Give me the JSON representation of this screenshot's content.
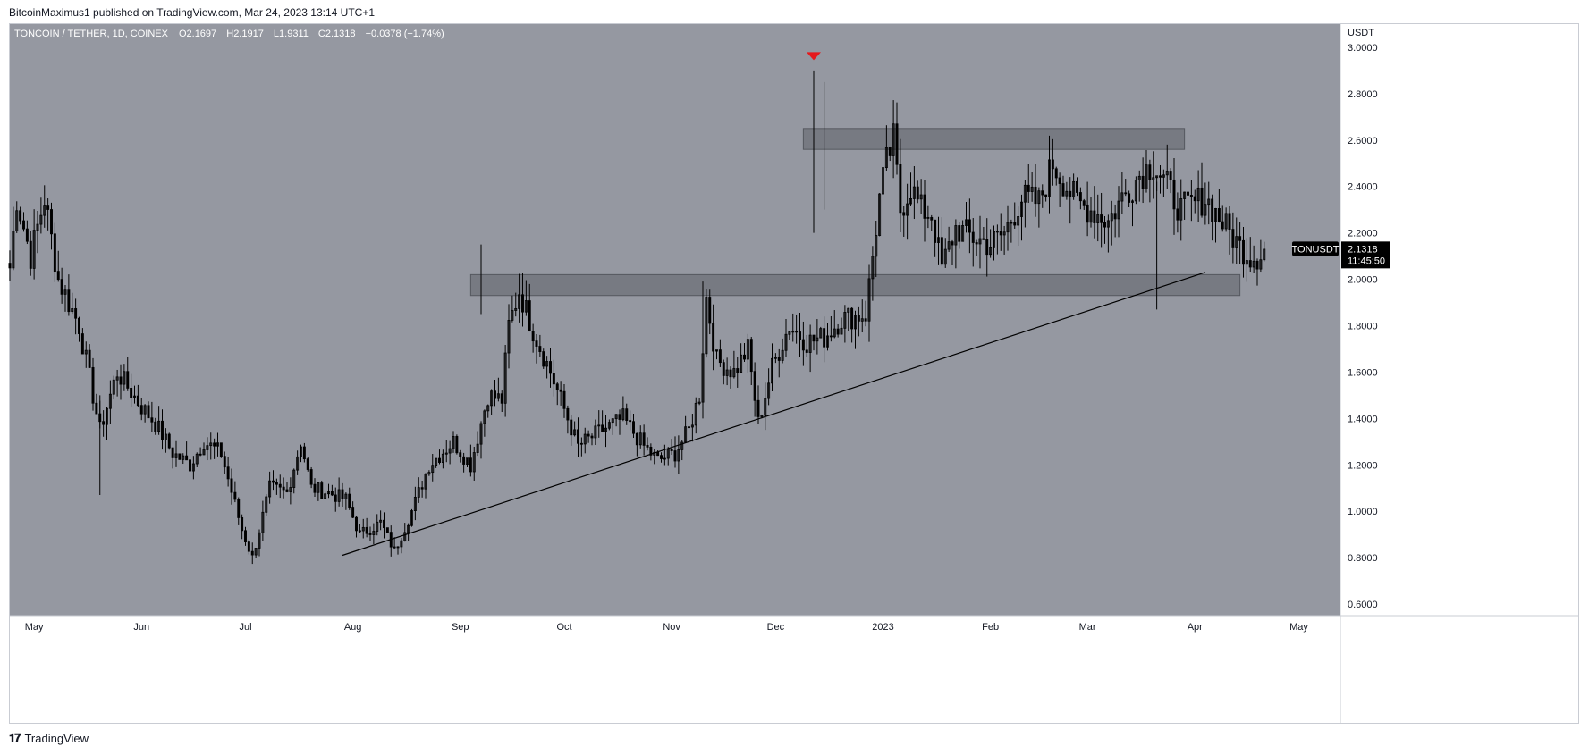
{
  "attribution": "BitcoinMaximus1 published on TradingView.com, Mar 24, 2023 13:14 UTC+1",
  "footer_brand": "TradingView",
  "footer_logo_icon": "tradingview-logo-icon",
  "colors": {
    "plot_bg": "#9598a1",
    "axis_bg": "#ffffff",
    "candle": "#000000",
    "zone": "#5f626a",
    "trendline": "#000000",
    "marker": "#e5191c",
    "price_label_bg": "#000000",
    "price_label_text": "#ffffff"
  },
  "chart_data": {
    "type": "candlestick",
    "symbol_header": {
      "symbol": "TONCOIN / TETHER, 1D, COINEX",
      "open_label": "O",
      "open": "2.1697",
      "high_label": "H",
      "high": "2.1917",
      "low_label": "L",
      "low": "1.9311",
      "close_label": "C",
      "close": "2.1318",
      "change": "−0.0378 (−1.74%)"
    },
    "currency_label": "USDT",
    "ylim": [
      0.55,
      3.1
    ],
    "y_ticks": [
      "3.0000",
      "2.8000",
      "2.6000",
      "2.4000",
      "2.2000",
      "2.0000",
      "1.8000",
      "1.6000",
      "1.4000",
      "1.2000",
      "1.0000",
      "0.8000",
      "0.6000"
    ],
    "x_ticks": [
      "May",
      "Jun",
      "Jul",
      "Aug",
      "Sep",
      "Oct",
      "Nov",
      "Dec",
      "2023",
      "Feb",
      "Mar",
      "Apr",
      "May"
    ],
    "x_tick_dates": [
      "2022-05-01",
      "2022-06-01",
      "2022-07-01",
      "2022-08-01",
      "2022-09-01",
      "2022-10-01",
      "2022-11-01",
      "2022-12-01",
      "2023-01-01",
      "2023-02-01",
      "2023-03-01",
      "2023-04-01",
      "2023-05-01"
    ],
    "xlim": [
      "2022-04-24",
      "2023-05-13"
    ],
    "last_price": {
      "symbol": "TONUSDT",
      "price": "2.1318",
      "countdown": "11:45:50",
      "value": 2.1318
    },
    "horizontal_zones": [
      {
        "name": "resistance",
        "start": "2022-12-09",
        "end": "2023-03-29",
        "low": 2.56,
        "high": 2.65
      },
      {
        "name": "support",
        "start": "2022-09-04",
        "end": "2023-04-14",
        "low": 1.93,
        "high": 2.02
      }
    ],
    "trendline": {
      "start": {
        "date": "2022-07-29",
        "value": 0.81
      },
      "end": {
        "date": "2023-04-04",
        "value": 2.03
      }
    },
    "marker": {
      "type": "down-triangle",
      "date": "2022-12-12",
      "value": 2.96
    },
    "anchors": [
      [
        "2022-04-24",
        2.05
      ],
      [
        "2022-04-26",
        2.35
      ],
      [
        "2022-04-30",
        2.1
      ],
      [
        "2022-05-04",
        2.35
      ],
      [
        "2022-05-08",
        2.0
      ],
      [
        "2022-05-14",
        1.8
      ],
      [
        "2022-05-20",
        1.35
      ],
      [
        "2022-05-25",
        1.6
      ],
      [
        "2022-06-01",
        1.45
      ],
      [
        "2022-06-05",
        1.38
      ],
      [
        "2022-06-10",
        1.25
      ],
      [
        "2022-06-15",
        1.2
      ],
      [
        "2022-06-19",
        1.3
      ],
      [
        "2022-06-24",
        1.25
      ],
      [
        "2022-06-30",
        0.92
      ],
      [
        "2022-07-03",
        0.8
      ],
      [
        "2022-07-05",
        0.92
      ],
      [
        "2022-07-08",
        1.1
      ],
      [
        "2022-07-13",
        1.08
      ],
      [
        "2022-07-17",
        1.3
      ],
      [
        "2022-07-20",
        1.1
      ],
      [
        "2022-07-25",
        1.08
      ],
      [
        "2022-07-30",
        1.05
      ],
      [
        "2022-08-03",
        0.9
      ],
      [
        "2022-08-09",
        0.95
      ],
      [
        "2022-08-13",
        0.83
      ],
      [
        "2022-08-18",
        1.0
      ],
      [
        "2022-08-23",
        1.2
      ],
      [
        "2022-08-30",
        1.3
      ],
      [
        "2022-09-04",
        1.2
      ],
      [
        "2022-09-09",
        1.5
      ],
      [
        "2022-09-13",
        1.48
      ],
      [
        "2022-09-15",
        1.8
      ],
      [
        "2022-09-18",
        1.95
      ],
      [
        "2022-09-22",
        1.78
      ],
      [
        "2022-09-27",
        1.6
      ],
      [
        "2022-10-02",
        1.4
      ],
      [
        "2022-10-05",
        1.28
      ],
      [
        "2022-10-12",
        1.35
      ],
      [
        "2022-10-18",
        1.4
      ],
      [
        "2022-10-24",
        1.28
      ],
      [
        "2022-10-28",
        1.22
      ],
      [
        "2022-11-02",
        1.25
      ],
      [
        "2022-11-06",
        1.35
      ],
      [
        "2022-11-09",
        1.5
      ],
      [
        "2022-11-11",
        1.92
      ],
      [
        "2022-11-14",
        1.65
      ],
      [
        "2022-11-19",
        1.6
      ],
      [
        "2022-11-23",
        1.7
      ],
      [
        "2022-11-26",
        1.38
      ],
      [
        "2022-11-30",
        1.62
      ],
      [
        "2022-12-05",
        1.8
      ],
      [
        "2022-12-10",
        1.73
      ],
      [
        "2022-12-15",
        1.75
      ],
      [
        "2022-12-20",
        1.83
      ],
      [
        "2022-12-27",
        1.85
      ],
      [
        "2022-12-29",
        2.1
      ],
      [
        "2022-12-31",
        2.35
      ],
      [
        "2023-01-02",
        2.5
      ],
      [
        "2023-01-04",
        2.6
      ],
      [
        "2023-01-06",
        2.3
      ],
      [
        "2023-01-09",
        2.4
      ],
      [
        "2023-01-12",
        2.3
      ],
      [
        "2023-01-15",
        2.28
      ],
      [
        "2023-01-18",
        2.05
      ],
      [
        "2023-01-22",
        2.22
      ],
      [
        "2023-01-27",
        2.18
      ],
      [
        "2023-02-01",
        2.15
      ],
      [
        "2023-02-05",
        2.2
      ],
      [
        "2023-02-10",
        2.35
      ],
      [
        "2023-02-15",
        2.33
      ],
      [
        "2023-02-19",
        2.5
      ],
      [
        "2023-02-23",
        2.4
      ],
      [
        "2023-02-26",
        2.33
      ],
      [
        "2023-03-02",
        2.3
      ],
      [
        "2023-03-07",
        2.25
      ],
      [
        "2023-03-11",
        2.35
      ],
      [
        "2023-03-16",
        2.45
      ],
      [
        "2023-03-20",
        2.5
      ],
      [
        "2023-03-24",
        2.4
      ],
      [
        "2023-03-28",
        2.3
      ],
      [
        "2023-04-04",
        2.35
      ],
      [
        "2023-04-14",
        2.14
      ],
      [
        "2023-04-17",
        2.1
      ],
      [
        "2023-04-19",
        2.1
      ],
      [
        "2023-04-21",
        2.13
      ]
    ]
  }
}
